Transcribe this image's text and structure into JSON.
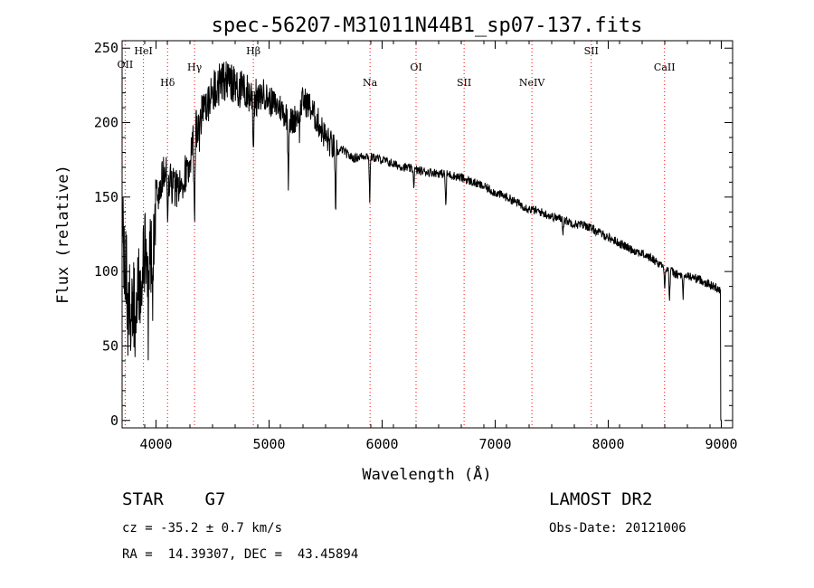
{
  "chart_data": {
    "type": "line",
    "title": "spec-56207-M31011N44B1_sp07-137.fits",
    "xlabel": "Wavelength (Å)",
    "ylabel": "Flux (relative)",
    "xlim": [
      3700,
      9100
    ],
    "ylim": [
      -5,
      255
    ],
    "xticks": [
      4000,
      5000,
      6000,
      7000,
      8000,
      9000
    ],
    "yticks": [
      0,
      50,
      100,
      150,
      200,
      250
    ],
    "grid": false,
    "line_color": "#000000",
    "marker_color": "#ff0000",
    "spectrum_anchors": [
      [
        3700,
        130
      ],
      [
        3740,
        95
      ],
      [
        3780,
        70
      ],
      [
        3830,
        85
      ],
      [
        3880,
        105
      ],
      [
        3920,
        115
      ],
      [
        3960,
        110
      ],
      [
        4000,
        150
      ],
      [
        4050,
        162
      ],
      [
        4100,
        165
      ],
      [
        4150,
        158
      ],
      [
        4200,
        155
      ],
      [
        4250,
        165
      ],
      [
        4300,
        175
      ],
      [
        4350,
        195
      ],
      [
        4400,
        205
      ],
      [
        4450,
        210
      ],
      [
        4500,
        220
      ],
      [
        4550,
        225
      ],
      [
        4600,
        228
      ],
      [
        4650,
        226
      ],
      [
        4700,
        225
      ],
      [
        4750,
        222
      ],
      [
        4800,
        220
      ],
      [
        4850,
        218
      ],
      [
        4900,
        215
      ],
      [
        4950,
        220
      ],
      [
        5000,
        215
      ],
      [
        5050,
        212
      ],
      [
        5100,
        210
      ],
      [
        5150,
        205
      ],
      [
        5200,
        200
      ],
      [
        5250,
        205
      ],
      [
        5300,
        215
      ],
      [
        5350,
        212
      ],
      [
        5400,
        205
      ],
      [
        5450,
        198
      ],
      [
        5500,
        190
      ],
      [
        5550,
        185
      ],
      [
        5600,
        180
      ],
      [
        5650,
        182
      ],
      [
        5700,
        178
      ],
      [
        5750,
        176
      ],
      [
        5800,
        177
      ],
      [
        5850,
        178
      ],
      [
        5900,
        177
      ],
      [
        5950,
        176
      ],
      [
        6000,
        175
      ],
      [
        6100,
        172
      ],
      [
        6200,
        170
      ],
      [
        6300,
        168
      ],
      [
        6400,
        167
      ],
      [
        6500,
        166
      ],
      [
        6600,
        165
      ],
      [
        6700,
        163
      ],
      [
        6800,
        160
      ],
      [
        6900,
        157
      ],
      [
        7000,
        153
      ],
      [
        7100,
        150
      ],
      [
        7200,
        146
      ],
      [
        7300,
        142
      ],
      [
        7400,
        140
      ],
      [
        7500,
        137
      ],
      [
        7600,
        135
      ],
      [
        7700,
        132
      ],
      [
        7800,
        131
      ],
      [
        7900,
        127
      ],
      [
        8000,
        123
      ],
      [
        8100,
        119
      ],
      [
        8200,
        115
      ],
      [
        8300,
        112
      ],
      [
        8400,
        108
      ],
      [
        8500,
        103
      ],
      [
        8600,
        98
      ],
      [
        8700,
        97
      ],
      [
        8800,
        95
      ],
      [
        8900,
        91
      ],
      [
        8990,
        88
      ]
    ],
    "absorption_dips": [
      [
        3750,
        40
      ],
      [
        3820,
        35
      ],
      [
        3860,
        25
      ],
      [
        3933,
        60
      ],
      [
        3968,
        55
      ],
      [
        4101,
        30
      ],
      [
        4340,
        70
      ],
      [
        4384,
        15
      ],
      [
        4861,
        35
      ],
      [
        5170,
        40
      ],
      [
        5270,
        15
      ],
      [
        5589,
        55
      ],
      [
        5890,
        30
      ],
      [
        6280,
        10
      ],
      [
        6563,
        25
      ],
      [
        7600,
        8
      ],
      [
        8498,
        15
      ],
      [
        8542,
        22
      ],
      [
        8662,
        18
      ]
    ],
    "lines": [
      {
        "label": "OII",
        "wavelength": 3727
      },
      {
        "label": "HeI",
        "wavelength": 3889
      },
      {
        "label": "Hδ",
        "wavelength": 4102
      },
      {
        "label": "Hγ",
        "wavelength": 4341
      },
      {
        "label": "Hβ",
        "wavelength": 4861
      },
      {
        "label": "Na",
        "wavelength": 5893
      },
      {
        "label": "OI",
        "wavelength": 6300
      },
      {
        "label": "SII",
        "wavelength": 6725
      },
      {
        "label": "NeIV",
        "wavelength": 7325
      },
      {
        "label": "SII",
        "wavelength": 7850
      },
      {
        "label": "CaII",
        "wavelength": 8498
      }
    ]
  },
  "info": {
    "classification": "STAR    G7",
    "cz": "cz = -35.2 ± 0.7 km/s",
    "coords": "RA =  14.39307, DEC =  43.45894",
    "survey": "LAMOST DR2",
    "obs_date": "Obs-Date: 20121006"
  }
}
